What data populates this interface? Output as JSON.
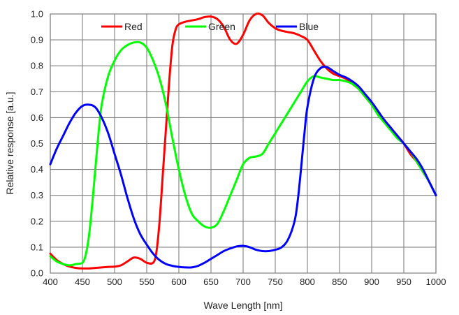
{
  "chart_data": {
    "type": "line",
    "xlabel": "Wave Length [nm]",
    "ylabel": "Relative response [a.u.]",
    "xlim": [
      400,
      1000
    ],
    "ylim": [
      0.0,
      1.0
    ],
    "xticks": [
      "400",
      "450",
      "500",
      "550",
      "600",
      "650",
      "700",
      "750",
      "800",
      "850",
      "900",
      "950",
      "1000"
    ],
    "yticks": [
      "0.0",
      "0.1",
      "0.2",
      "0.3",
      "0.4",
      "0.5",
      "0.6",
      "0.7",
      "0.8",
      "0.9",
      "1.0"
    ],
    "grid": true,
    "legend_position": "top",
    "series": [
      {
        "name": "Red",
        "color": "#ff0000",
        "x": [
          400,
          410,
          420,
          430,
          440,
          450,
          460,
          470,
          480,
          490,
          500,
          510,
          520,
          530,
          540,
          550,
          560,
          565,
          570,
          575,
          580,
          585,
          590,
          595,
          600,
          610,
          620,
          630,
          640,
          650,
          660,
          670,
          680,
          690,
          700,
          710,
          720,
          730,
          740,
          750,
          760,
          770,
          780,
          790,
          800,
          810,
          820,
          830,
          840,
          850,
          860,
          870,
          880,
          890,
          900,
          910,
          920,
          930,
          940,
          950,
          960,
          970,
          980,
          990,
          1000
        ],
        "y": [
          0.075,
          0.05,
          0.035,
          0.025,
          0.02,
          0.018,
          0.018,
          0.02,
          0.022,
          0.024,
          0.025,
          0.03,
          0.045,
          0.06,
          0.055,
          0.04,
          0.04,
          0.08,
          0.2,
          0.38,
          0.56,
          0.74,
          0.88,
          0.94,
          0.96,
          0.97,
          0.975,
          0.98,
          0.988,
          0.99,
          0.98,
          0.95,
          0.9,
          0.885,
          0.92,
          0.975,
          1.0,
          0.995,
          0.965,
          0.945,
          0.935,
          0.93,
          0.925,
          0.915,
          0.9,
          0.86,
          0.82,
          0.79,
          0.77,
          0.76,
          0.75,
          0.73,
          0.71,
          0.68,
          0.65,
          0.62,
          0.59,
          0.56,
          0.53,
          0.5,
          0.46,
          0.43,
          0.39,
          0.35,
          0.3
        ]
      },
      {
        "name": "Green",
        "color": "#00ff00",
        "x": [
          400,
          410,
          420,
          430,
          440,
          450,
          455,
          460,
          465,
          470,
          475,
          480,
          490,
          500,
          510,
          520,
          530,
          540,
          550,
          560,
          570,
          580,
          590,
          600,
          610,
          620,
          630,
          640,
          650,
          660,
          670,
          680,
          690,
          700,
          710,
          720,
          730,
          740,
          750,
          760,
          770,
          780,
          790,
          800,
          810,
          820,
          830,
          840,
          850,
          860,
          870,
          880,
          890,
          900,
          910,
          920,
          930,
          940,
          950,
          960,
          970,
          980,
          990,
          1000
        ],
        "y": [
          0.065,
          0.045,
          0.035,
          0.03,
          0.035,
          0.04,
          0.07,
          0.14,
          0.26,
          0.4,
          0.54,
          0.65,
          0.76,
          0.82,
          0.86,
          0.88,
          0.89,
          0.89,
          0.87,
          0.82,
          0.75,
          0.65,
          0.52,
          0.4,
          0.3,
          0.23,
          0.2,
          0.18,
          0.175,
          0.19,
          0.24,
          0.3,
          0.36,
          0.42,
          0.445,
          0.45,
          0.46,
          0.5,
          0.54,
          0.58,
          0.62,
          0.66,
          0.7,
          0.74,
          0.76,
          0.755,
          0.75,
          0.745,
          0.745,
          0.74,
          0.73,
          0.71,
          0.68,
          0.65,
          0.61,
          0.58,
          0.55,
          0.52,
          0.5,
          0.47,
          0.43,
          0.39,
          0.35,
          0.3
        ]
      },
      {
        "name": "Blue",
        "color": "#0000ff",
        "x": [
          400,
          410,
          420,
          430,
          440,
          450,
          460,
          470,
          480,
          490,
          500,
          510,
          520,
          530,
          540,
          550,
          560,
          570,
          580,
          590,
          600,
          610,
          620,
          630,
          640,
          650,
          660,
          670,
          680,
          690,
          700,
          710,
          720,
          730,
          740,
          750,
          760,
          770,
          780,
          785,
          790,
          795,
          800,
          810,
          820,
          830,
          840,
          850,
          860,
          870,
          880,
          890,
          900,
          910,
          920,
          930,
          940,
          950,
          960,
          970,
          980,
          990,
          1000
        ],
        "y": [
          0.42,
          0.48,
          0.53,
          0.58,
          0.62,
          0.645,
          0.65,
          0.64,
          0.6,
          0.54,
          0.46,
          0.38,
          0.29,
          0.21,
          0.15,
          0.11,
          0.075,
          0.05,
          0.035,
          0.028,
          0.024,
          0.022,
          0.022,
          0.028,
          0.04,
          0.055,
          0.07,
          0.085,
          0.095,
          0.103,
          0.105,
          0.1,
          0.09,
          0.085,
          0.085,
          0.09,
          0.1,
          0.13,
          0.2,
          0.28,
          0.4,
          0.53,
          0.64,
          0.75,
          0.79,
          0.795,
          0.78,
          0.765,
          0.755,
          0.74,
          0.72,
          0.69,
          0.66,
          0.625,
          0.59,
          0.56,
          0.53,
          0.5,
          0.47,
          0.44,
          0.4,
          0.35,
          0.3
        ]
      }
    ]
  }
}
